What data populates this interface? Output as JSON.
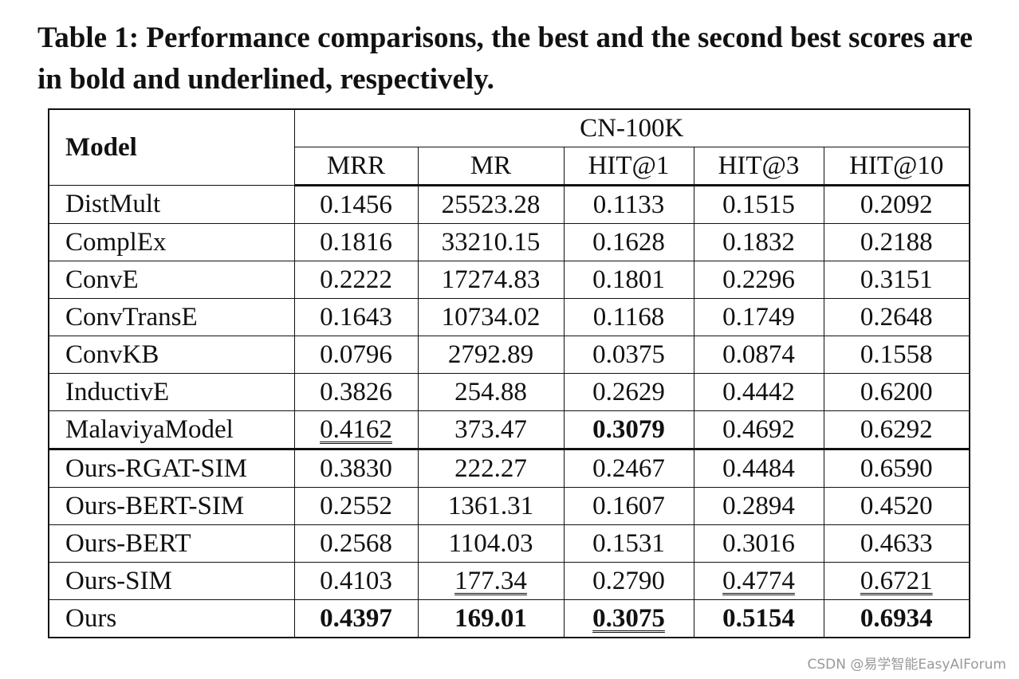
{
  "caption": "Table 1: Performance comparisons, the best and the second best scores are in bold and underlined, respectively.",
  "table": {
    "model_header": "Model",
    "group_header": "CN-100K",
    "columns": [
      "MRR",
      "MR",
      "HIT@1",
      "HIT@3",
      "HIT@10"
    ],
    "rows": [
      [
        "DistMult",
        "0.1456",
        "25523.28",
        "0.1133",
        "0.1515",
        "0.2092"
      ],
      [
        "ComplEx",
        "0.1816",
        "33210.15",
        "0.1628",
        "0.1832",
        "0.2188"
      ],
      [
        "ConvE",
        "0.2222",
        "17274.83",
        "0.1801",
        "0.2296",
        "0.3151"
      ],
      [
        "ConvTransE",
        "0.1643",
        "10734.02",
        "0.1168",
        "0.1749",
        "0.2648"
      ],
      [
        "ConvKB",
        "0.0796",
        "2792.89",
        "0.0375",
        "0.0874",
        "0.1558"
      ],
      [
        "InductivE",
        "0.3826",
        "254.88",
        "0.2629",
        "0.4442",
        "0.6200"
      ],
      [
        "MalaviyaModel",
        "0.4162",
        "373.47",
        "0.3079",
        "0.4692",
        "0.6292"
      ],
      [
        "Ours-RGAT-SIM",
        "0.3830",
        "222.27",
        "0.2467",
        "0.4484",
        "0.6590"
      ],
      [
        "Ours-BERT-SIM",
        "0.2552",
        "1361.31",
        "0.1607",
        "0.2894",
        "0.4520"
      ],
      [
        "Ours-BERT",
        "0.2568",
        "1104.03",
        "0.1531",
        "0.3016",
        "0.4633"
      ],
      [
        "Ours-SIM",
        "0.4103",
        "177.34",
        "0.2790",
        "0.4774",
        "0.6721"
      ],
      [
        "Ours",
        "0.4397",
        "169.01",
        "0.3075",
        "0.5154",
        "0.6934"
      ]
    ]
  },
  "watermark": "CSDN @易学智能EasyAIForum"
}
